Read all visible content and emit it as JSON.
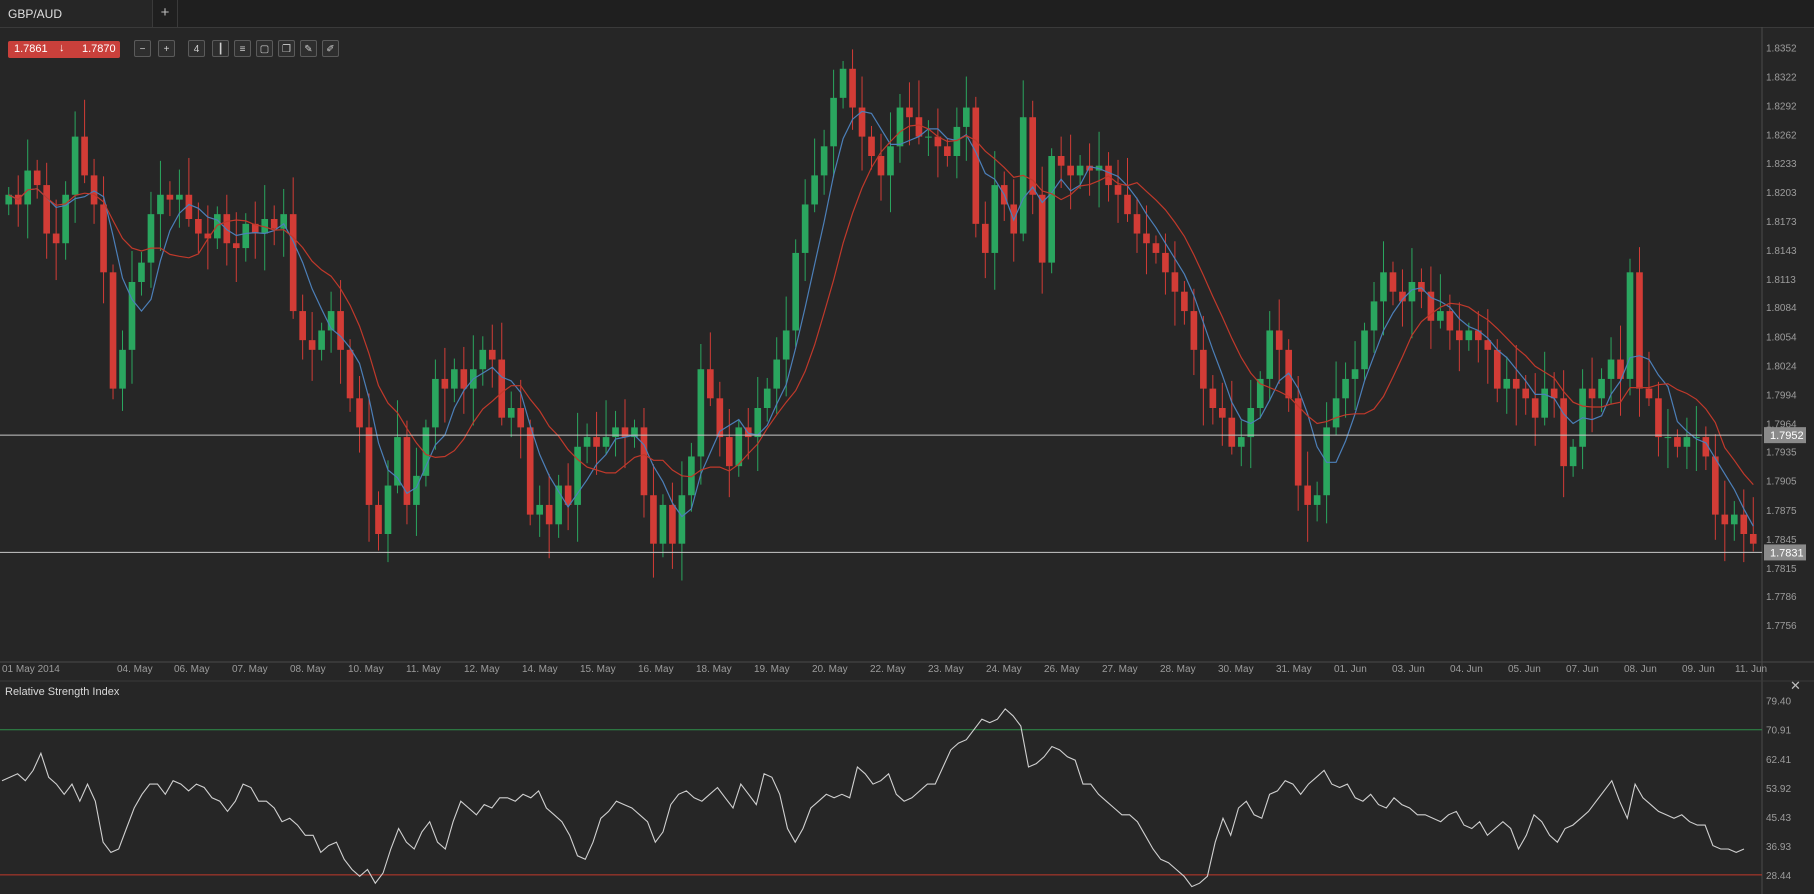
{
  "tab": {
    "title": "GBP/AUD",
    "add_label": "+"
  },
  "quote": {
    "bid": "1.7861",
    "ask": "1.7870",
    "direction_symbol": "↓"
  },
  "toolbar": {
    "buttons": [
      {
        "name": "zoom-out-icon",
        "glyph": "−"
      },
      {
        "name": "zoom-in-icon",
        "glyph": "+"
      },
      {
        "name": "period-button",
        "glyph": "4"
      },
      {
        "name": "candles-icon",
        "glyph": "┃"
      },
      {
        "name": "indicators-icon",
        "glyph": "≡"
      },
      {
        "name": "chart-type-icon",
        "glyph": "▢"
      },
      {
        "name": "copy-icon",
        "glyph": "❐"
      },
      {
        "name": "edit-icon",
        "glyph": "✎"
      },
      {
        "name": "draw-icon",
        "glyph": "✐"
      }
    ]
  },
  "colors": {
    "background": "#262626",
    "bull": "#2aa65f",
    "bear": "#d23c36",
    "ma_fast": "#4c7fb8",
    "ma_slow": "#c0392b",
    "rsi_upper": "#2f8f4a",
    "rsi_lower": "#c0392b",
    "rsi_line": "#d0d0d0",
    "marker_line": "#c8c8c8"
  },
  "chart_data": [
    {
      "type": "candlestick",
      "title": "GBP/AUD",
      "ylim": [
        1.772,
        1.837
      ],
      "yticks": [
        "1.8352",
        "1.8322",
        "1.8292",
        "1.8262",
        "1.8233",
        "1.8203",
        "1.8173",
        "1.8143",
        "1.8113",
        "1.8084",
        "1.8054",
        "1.8024",
        "1.7994",
        "1.7964",
        "1.7935",
        "1.7905",
        "1.7875",
        "1.7845",
        "1.7815",
        "1.7786",
        "1.7756"
      ],
      "xticks": [
        "01 May 2014",
        "04. May",
        "06. May",
        "07. May",
        "08. May",
        "10. May",
        "11. May",
        "12. May",
        "14. May",
        "15. May",
        "16. May",
        "18. May",
        "19. May",
        "20. May",
        "22. May",
        "23. May",
        "24. May",
        "26. May",
        "27. May",
        "28. May",
        "30. May",
        "31. May",
        "01. Jun",
        "03. Jun",
        "04. Jun",
        "05. Jun",
        "07. Jun",
        "08. Jun",
        "09. Jun",
        "11. Jun"
      ],
      "price_markers": [
        {
          "label": "1.7952",
          "value": 1.7952
        },
        {
          "label": "1.7831",
          "value": 1.7831
        }
      ],
      "close": [
        1.82,
        1.819,
        1.8225,
        1.821,
        1.816,
        1.815,
        1.82,
        1.826,
        1.822,
        1.819,
        1.812,
        1.8,
        1.804,
        1.811,
        1.813,
        1.818,
        1.82,
        1.8195,
        1.82,
        1.8175,
        1.816,
        1.8155,
        1.818,
        1.815,
        1.8145,
        1.817,
        1.816,
        1.8175,
        1.8165,
        1.818,
        1.808,
        1.805,
        1.804,
        1.806,
        1.808,
        1.804,
        1.799,
        1.796,
        1.788,
        1.785,
        1.79,
        1.795,
        1.788,
        1.791,
        1.796,
        1.801,
        1.8,
        1.802,
        1.8,
        1.802,
        1.804,
        1.803,
        1.797,
        1.798,
        1.796,
        1.787,
        1.788,
        1.786,
        1.79,
        1.788,
        1.794,
        1.795,
        1.794,
        1.795,
        1.796,
        1.795,
        1.796,
        1.789,
        1.784,
        1.788,
        1.784,
        1.789,
        1.793,
        1.802,
        1.799,
        1.795,
        1.792,
        1.796,
        1.795,
        1.798,
        1.8,
        1.803,
        1.806,
        1.814,
        1.819,
        1.822,
        1.825,
        1.83,
        1.833,
        1.829,
        1.826,
        1.824,
        1.822,
        1.825,
        1.829,
        1.828,
        1.826,
        1.826,
        1.825,
        1.824,
        1.827,
        1.829,
        1.817,
        1.814,
        1.821,
        1.819,
        1.816,
        1.828,
        1.82,
        1.813,
        1.824,
        1.823,
        1.822,
        1.823,
        1.8225,
        1.823,
        1.821,
        1.82,
        1.818,
        1.816,
        1.815,
        1.814,
        1.812,
        1.81,
        1.808,
        1.804,
        1.8,
        1.798,
        1.797,
        1.794,
        1.795,
        1.798,
        1.801,
        1.806,
        1.804,
        1.799,
        1.79,
        1.788,
        1.789,
        1.796,
        1.799,
        1.801,
        1.802,
        1.806,
        1.809,
        1.812,
        1.81,
        1.809,
        1.811,
        1.81,
        1.807,
        1.808,
        1.806,
        1.805,
        1.806,
        1.805,
        1.804,
        1.8,
        1.801,
        1.8,
        1.799,
        1.797,
        1.8,
        1.799,
        1.792,
        1.794,
        1.8,
        1.799,
        1.801,
        1.803,
        1.801,
        1.812,
        1.8,
        1.799,
        1.795,
        1.795,
        1.794,
        1.795,
        1.795,
        1.793,
        1.787,
        1.786,
        1.787,
        1.785,
        1.784
      ],
      "indicators": [
        {
          "name": "moving-average-fast"
        },
        {
          "name": "moving-average-slow"
        }
      ]
    },
    {
      "type": "line",
      "title": "Relative Strength Index",
      "ylim": [
        24,
        84
      ],
      "yticks": [
        "79.40",
        "70.91",
        "62.41",
        "53.92",
        "45.43",
        "36.93",
        "28.44"
      ],
      "levels": [
        70.91,
        28.44
      ],
      "values": [
        56,
        57,
        58,
        56,
        59,
        64,
        57,
        55,
        52,
        55,
        50,
        55,
        50,
        38,
        35,
        36,
        42,
        48,
        52,
        55,
        55,
        52,
        56,
        55,
        53,
        55,
        54,
        51,
        50,
        47,
        50,
        55,
        54,
        50,
        50,
        48,
        44,
        45,
        43,
        40,
        40,
        35,
        37,
        38,
        33,
        30,
        28,
        30,
        26,
        29,
        36,
        42,
        38,
        36,
        41,
        44,
        38,
        36,
        44,
        50,
        48,
        46,
        49,
        48,
        51,
        51,
        50,
        52,
        51,
        53,
        48,
        46,
        44,
        40,
        34,
        33,
        38,
        45,
        47,
        50,
        49,
        48,
        46,
        44,
        38,
        41,
        49,
        52,
        53,
        51,
        50,
        52,
        54,
        51,
        48,
        55,
        52,
        49,
        58,
        57,
        52,
        42,
        38,
        42,
        48,
        50,
        52,
        51,
        52,
        51,
        60,
        58,
        55,
        56,
        58,
        52,
        50,
        51,
        53,
        55,
        55,
        60,
        65,
        67,
        68,
        71,
        74,
        73,
        74,
        77,
        75,
        72,
        60,
        61,
        63,
        66,
        65,
        63,
        62,
        55,
        55,
        52,
        50,
        48,
        46,
        46,
        44,
        40,
        36,
        33,
        32,
        30,
        28,
        25,
        26,
        28,
        38,
        45,
        40,
        48,
        50,
        46,
        45,
        52,
        53,
        56,
        55,
        52,
        55,
        57,
        59,
        55,
        54,
        55,
        51,
        50,
        52,
        49,
        48,
        51,
        49,
        48,
        46,
        46,
        45,
        44,
        46,
        47,
        43,
        42,
        44,
        40,
        42,
        44,
        42,
        36,
        40,
        46,
        44,
        40,
        38,
        42,
        43,
        45,
        47,
        50,
        53,
        56,
        50,
        45,
        55,
        51,
        49,
        47,
        46,
        45,
        46,
        44,
        43,
        43,
        37,
        36,
        36,
        35,
        36
      ]
    }
  ]
}
